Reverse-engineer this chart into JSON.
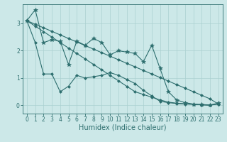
{
  "bg_color": "#cce8e8",
  "line_color": "#2d6e6e",
  "grid_color": "#aad0d0",
  "xlabel": "Humidex (Indice chaleur)",
  "xlabel_fontsize": 7,
  "tick_fontsize": 5.5,
  "xlim": [
    -0.5,
    23.5
  ],
  "ylim": [
    -0.3,
    3.7
  ],
  "yticks": [
    0,
    1,
    2,
    3
  ],
  "xticks": [
    0,
    1,
    2,
    3,
    4,
    5,
    6,
    7,
    8,
    9,
    10,
    11,
    12,
    13,
    14,
    15,
    16,
    17,
    18,
    19,
    20,
    21,
    22,
    23
  ],
  "series": [
    {
      "x": [
        0,
        1,
        2,
        3,
        4,
        5,
        6,
        7,
        8,
        9,
        10,
        11,
        12,
        13,
        14,
        15,
        16,
        17,
        18,
        19,
        20,
        21,
        22,
        23
      ],
      "y": [
        3.1,
        2.97,
        2.84,
        2.71,
        2.58,
        2.45,
        2.32,
        2.19,
        2.06,
        1.93,
        1.8,
        1.67,
        1.54,
        1.41,
        1.28,
        1.15,
        1.02,
        0.89,
        0.76,
        0.63,
        0.5,
        0.37,
        0.24,
        0.05
      ],
      "marker": "D",
      "markersize": 2.0,
      "linewidth": 0.8
    },
    {
      "x": [
        0,
        1,
        2,
        3,
        4,
        5,
        6,
        7,
        8,
        9,
        10,
        11,
        12,
        13,
        14,
        15,
        16,
        17,
        18,
        19,
        20,
        21,
        22,
        23
      ],
      "y": [
        3.1,
        2.9,
        2.7,
        2.5,
        2.3,
        2.1,
        1.9,
        1.7,
        1.5,
        1.3,
        1.1,
        0.9,
        0.7,
        0.5,
        0.4,
        0.3,
        0.2,
        0.12,
        0.08,
        0.06,
        0.04,
        0.02,
        0.01,
        0.05
      ],
      "marker": "D",
      "markersize": 2.0,
      "linewidth": 0.8
    },
    {
      "x": [
        0,
        1,
        2,
        3,
        4,
        5,
        6,
        7,
        8,
        9,
        10,
        11,
        12,
        13,
        14,
        15,
        16,
        17,
        18,
        19,
        20,
        21,
        22,
        23
      ],
      "y": [
        3.1,
        3.5,
        2.3,
        2.4,
        2.35,
        1.5,
        2.35,
        2.2,
        2.45,
        2.3,
        1.85,
        2.0,
        1.95,
        1.9,
        1.6,
        2.2,
        1.35,
        0.5,
        0.2,
        0.1,
        0.05,
        0.03,
        0.02,
        0.08
      ],
      "marker": "*",
      "markersize": 4.0,
      "linewidth": 0.8
    },
    {
      "x": [
        0,
        1,
        2,
        3,
        4,
        5,
        6,
        7,
        8,
        9,
        10,
        11,
        12,
        13,
        14,
        15,
        16,
        17,
        18,
        19,
        20,
        21,
        22,
        23
      ],
      "y": [
        3.1,
        2.3,
        1.15,
        1.15,
        0.5,
        0.7,
        1.1,
        1.0,
        1.05,
        1.1,
        1.2,
        1.1,
        0.95,
        0.8,
        0.55,
        0.35,
        0.15,
        0.1,
        0.07,
        0.05,
        0.04,
        0.02,
        0.01,
        0.05
      ],
      "marker": "D",
      "markersize": 2.0,
      "linewidth": 0.8
    }
  ]
}
